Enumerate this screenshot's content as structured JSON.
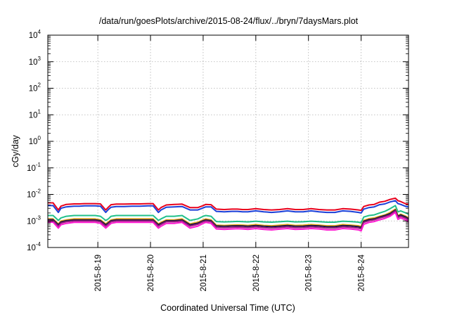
{
  "chart_data": {
    "type": "line",
    "title": "/data/run/goesPlots/archive/2015-08-24/flux/../bryn/7daysMars.plot",
    "xlabel": "Coordinated Universal Time (UTC)",
    "ylabel": "cGy/day",
    "yscale": "log",
    "ylim": [
      0.0001,
      10000
    ],
    "xlim": [
      0,
      6.85
    ],
    "grid": true,
    "y_ticks": [
      {
        "value": 0.0001,
        "base": "10",
        "exp": "-4"
      },
      {
        "value": 0.001,
        "base": "10",
        "exp": "-3"
      },
      {
        "value": 0.01,
        "base": "10",
        "exp": "-2"
      },
      {
        "value": 0.1,
        "base": "10",
        "exp": "-1"
      },
      {
        "value": 1,
        "base": "10",
        "exp": "0"
      },
      {
        "value": 10,
        "base": "10",
        "exp": "1"
      },
      {
        "value": 100,
        "base": "10",
        "exp": "2"
      },
      {
        "value": 1000,
        "base": "10",
        "exp": "3"
      },
      {
        "value": 10000,
        "base": "10",
        "exp": "4"
      }
    ],
    "x_ticks": [
      {
        "value": 0.95,
        "label": "2015-8-19"
      },
      {
        "value": 1.95,
        "label": "2015-8-20"
      },
      {
        "value": 2.95,
        "label": "2015-8-21"
      },
      {
        "value": 3.95,
        "label": "2015-8-22"
      },
      {
        "value": 4.95,
        "label": "2015-8-23"
      },
      {
        "value": 5.95,
        "label": "2015-8-24"
      }
    ],
    "x": [
      0,
      0.1,
      0.2,
      0.25,
      0.35,
      0.5,
      0.6,
      0.7,
      0.8,
      0.9,
      1.0,
      1.1,
      1.15,
      1.2,
      1.3,
      1.45,
      1.6,
      1.75,
      1.9,
      2.0,
      2.1,
      2.15,
      2.25,
      2.4,
      2.55,
      2.7,
      2.85,
      2.95,
      3.0,
      3.1,
      3.2,
      3.35,
      3.5,
      3.6,
      3.7,
      3.8,
      3.95,
      4.1,
      4.25,
      4.4,
      4.55,
      4.7,
      4.85,
      5.0,
      5.15,
      5.3,
      5.45,
      5.6,
      5.75,
      5.9,
      5.95,
      6.0,
      6.1,
      6.2,
      6.3,
      6.4,
      6.5,
      6.6,
      6.65,
      6.7,
      6.8,
      6.85
    ],
    "series": [
      {
        "color": "#e8001c",
        "values": [
          0.0048,
          0.0048,
          0.0026,
          0.0036,
          0.0042,
          0.0044,
          0.0044,
          0.0045,
          0.0045,
          0.0045,
          0.0044,
          0.0026,
          0.0033,
          0.0041,
          0.0043,
          0.0043,
          0.0044,
          0.0044,
          0.0045,
          0.0045,
          0.0026,
          0.0032,
          0.004,
          0.0042,
          0.0043,
          0.0032,
          0.0032,
          0.0038,
          0.0042,
          0.0041,
          0.0028,
          0.0027,
          0.0028,
          0.0028,
          0.0027,
          0.0027,
          0.0029,
          0.0027,
          0.0026,
          0.0027,
          0.0029,
          0.0027,
          0.0027,
          0.0029,
          0.0027,
          0.0026,
          0.0026,
          0.0029,
          0.0028,
          0.0026,
          0.0025,
          0.0035,
          0.004,
          0.0042,
          0.0051,
          0.0055,
          0.0065,
          0.0072,
          0.0058,
          0.0054,
          0.0044,
          0.0043
        ]
      },
      {
        "color": "#1b3fd8",
        "values": [
          0.0038,
          0.0038,
          0.0021,
          0.003,
          0.0034,
          0.0036,
          0.0036,
          0.0037,
          0.0037,
          0.0037,
          0.0036,
          0.0021,
          0.0027,
          0.0033,
          0.0035,
          0.0035,
          0.0036,
          0.0036,
          0.0037,
          0.0037,
          0.0021,
          0.0026,
          0.0033,
          0.0034,
          0.0035,
          0.0026,
          0.0026,
          0.0031,
          0.0034,
          0.0034,
          0.0023,
          0.0022,
          0.0023,
          0.0023,
          0.0022,
          0.0022,
          0.0024,
          0.0022,
          0.0021,
          0.0022,
          0.0024,
          0.0022,
          0.0022,
          0.0024,
          0.0022,
          0.0021,
          0.0021,
          0.0024,
          0.0023,
          0.0021,
          0.002,
          0.0028,
          0.0032,
          0.0034,
          0.0041,
          0.0044,
          0.0052,
          0.0058,
          0.0045,
          0.0042,
          0.0035,
          0.0034
        ]
      },
      {
        "color": "#20c08a",
        "values": [
          0.0016,
          0.0016,
          0.00105,
          0.0013,
          0.0015,
          0.0016,
          0.0016,
          0.0016,
          0.0016,
          0.0016,
          0.0015,
          0.00105,
          0.0012,
          0.0015,
          0.0016,
          0.0016,
          0.0016,
          0.0016,
          0.0016,
          0.0016,
          0.00105,
          0.0012,
          0.0015,
          0.0015,
          0.0016,
          0.00105,
          0.0012,
          0.0015,
          0.0016,
          0.0015,
          0.00095,
          0.00092,
          0.00094,
          0.00096,
          0.00094,
          0.00092,
          0.00098,
          0.00092,
          0.0009,
          0.00093,
          0.00098,
          0.00092,
          0.00093,
          0.00098,
          0.00094,
          0.0009,
          0.0009,
          0.00098,
          0.00095,
          0.0009,
          0.00085,
          0.0014,
          0.0016,
          0.0017,
          0.002,
          0.0023,
          0.0029,
          0.0038,
          0.0022,
          0.0024,
          0.002,
          0.0018
        ]
      },
      {
        "color": "#f2a818",
        "values": [
          0.0012,
          0.0012,
          0.00078,
          0.001,
          0.0011,
          0.0012,
          0.0012,
          0.0012,
          0.0012,
          0.0012,
          0.0011,
          0.00078,
          0.00092,
          0.0011,
          0.0012,
          0.0012,
          0.0012,
          0.0012,
          0.0012,
          0.0012,
          0.00078,
          0.00088,
          0.0011,
          0.0011,
          0.0012,
          0.00078,
          0.0009,
          0.0011,
          0.0012,
          0.0011,
          0.0007,
          0.00068,
          0.0007,
          0.00071,
          0.0007,
          0.00068,
          0.00073,
          0.00068,
          0.00066,
          0.00069,
          0.00073,
          0.00068,
          0.00069,
          0.00073,
          0.0007,
          0.00066,
          0.00066,
          0.00073,
          0.0007,
          0.00066,
          0.00062,
          0.00105,
          0.00122,
          0.0013,
          0.0015,
          0.0017,
          0.0021,
          0.0028,
          0.0016,
          0.0018,
          0.0015,
          0.0013
        ]
      },
      {
        "color": "#1a1a40",
        "values": [
          0.00112,
          0.00112,
          0.00072,
          0.00092,
          0.00102,
          0.0011,
          0.0011,
          0.0011,
          0.0011,
          0.0011,
          0.00102,
          0.00072,
          0.00085,
          0.00102,
          0.0011,
          0.0011,
          0.0011,
          0.0011,
          0.0011,
          0.0011,
          0.00072,
          0.00082,
          0.00102,
          0.00102,
          0.0011,
          0.00072,
          0.00083,
          0.00102,
          0.0011,
          0.00102,
          0.00065,
          0.00063,
          0.00065,
          0.00066,
          0.00065,
          0.00063,
          0.00067,
          0.00063,
          0.00061,
          0.00064,
          0.00067,
          0.00063,
          0.00064,
          0.00067,
          0.00065,
          0.00061,
          0.00061,
          0.00067,
          0.00065,
          0.00061,
          0.00057,
          0.00097,
          0.00113,
          0.0012,
          0.0014,
          0.0016,
          0.0019,
          0.0026,
          0.0015,
          0.0017,
          0.0014,
          0.0012
        ]
      },
      {
        "color": "#9a1a80",
        "values": [
          0.00102,
          0.00102,
          0.00064,
          0.00083,
          0.00093,
          0.001,
          0.001,
          0.001,
          0.001,
          0.001,
          0.00093,
          0.00064,
          0.00077,
          0.00093,
          0.001,
          0.001,
          0.001,
          0.001,
          0.001,
          0.001,
          0.00064,
          0.00074,
          0.00093,
          0.00093,
          0.001,
          0.00064,
          0.00075,
          0.00093,
          0.001,
          0.00093,
          0.00058,
          0.00056,
          0.00058,
          0.00059,
          0.00058,
          0.00056,
          0.0006,
          0.00056,
          0.00054,
          0.00057,
          0.0006,
          0.00056,
          0.00057,
          0.0006,
          0.00058,
          0.00054,
          0.00054,
          0.0006,
          0.00058,
          0.00054,
          0.0005,
          0.00088,
          0.00102,
          0.0011,
          0.00128,
          0.00145,
          0.0017,
          0.0024,
          0.00135,
          0.0015,
          0.00125,
          0.00108
        ]
      },
      {
        "color": "#ff18d0",
        "values": [
          0.0009,
          0.0009,
          0.00054,
          0.00072,
          0.00081,
          0.00088,
          0.00088,
          0.00088,
          0.00088,
          0.00088,
          0.00081,
          0.00054,
          0.00066,
          0.00081,
          0.00088,
          0.00088,
          0.00088,
          0.00088,
          0.00088,
          0.00088,
          0.00054,
          0.00063,
          0.00081,
          0.00081,
          0.00088,
          0.00054,
          0.00064,
          0.00081,
          0.00088,
          0.00081,
          0.0005,
          0.00048,
          0.0005,
          0.00051,
          0.0005,
          0.00048,
          0.00052,
          0.00048,
          0.00046,
          0.00049,
          0.00052,
          0.00048,
          0.00049,
          0.00052,
          0.0005,
          0.00046,
          0.00046,
          0.00052,
          0.0005,
          0.00046,
          0.00042,
          0.00075,
          0.00088,
          0.00095,
          0.0011,
          0.00125,
          0.0015,
          0.0021,
          0.00115,
          0.0013,
          0.00108,
          0.00092
        ]
      }
    ]
  }
}
